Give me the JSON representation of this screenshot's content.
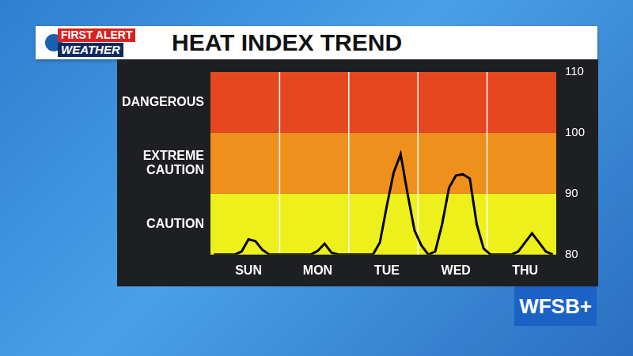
{
  "chart_data": {
    "type": "line",
    "title": "HEAT INDEX TREND",
    "categories": [
      null,
      null,
      null,
      null,
      null,
      "SUN",
      null,
      null,
      null,
      null,
      null,
      null,
      null,
      null,
      null,
      "MON",
      null,
      null,
      null,
      null,
      null,
      null,
      null,
      null,
      null,
      "TUE",
      null,
      null,
      null,
      null,
      null,
      null,
      null,
      null,
      null,
      "WED",
      null,
      null,
      null,
      null,
      null,
      null,
      null,
      null,
      null,
      "THU",
      null,
      null,
      null,
      null
    ],
    "values": [
      80,
      80,
      80,
      80,
      80.5,
      82.5,
      82.2,
      80.8,
      80,
      80,
      80,
      80,
      80,
      80,
      80,
      80.6,
      81.8,
      80.3,
      80,
      80,
      80,
      80,
      80,
      80,
      82,
      88,
      93.5,
      96.5,
      90,
      84,
      81.5,
      80,
      80.5,
      85,
      91,
      93,
      93.2,
      92.5,
      85,
      81,
      80,
      80,
      80,
      80,
      80.5,
      82,
      83.5,
      82,
      80.5,
      80
    ],
    "color": "#000000",
    "ylim": [
      80,
      110
    ],
    "yticks": [
      80,
      90,
      100,
      110
    ],
    "grid": false,
    "bands": [
      {
        "label": "CAUTION",
        "from": 80,
        "to": 90,
        "color": "#eef01c"
      },
      {
        "label": "EXTREME CAUTION",
        "from": 90,
        "to": 100,
        "color": "#f0901c"
      },
      {
        "label": "DANGEROUS",
        "from": 100,
        "to": 110,
        "color": "#e5481e"
      }
    ]
  },
  "header": {
    "logo": [
      "FIRST ALERT",
      "WEATHER"
    ],
    "station": "WFSB+"
  }
}
